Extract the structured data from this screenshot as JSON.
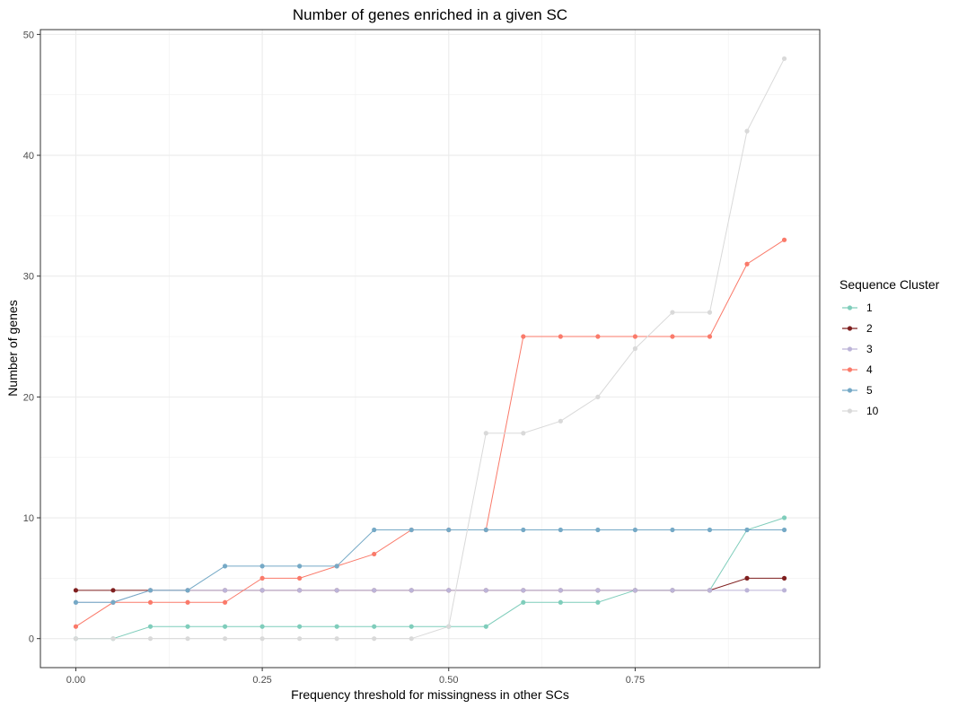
{
  "chart_data": {
    "type": "line",
    "title": "Number of genes enriched in a given SC",
    "xlabel": "Frequency threshold for missingness in other SCs",
    "ylabel": "Number of genes",
    "xlim": [
      -0.0475,
      0.9975
    ],
    "ylim": [
      -2.4,
      50.4
    ],
    "x_ticks": [
      0,
      0.25,
      0.5,
      0.75
    ],
    "x_tick_labels": [
      "0.00",
      "0.25",
      "0.50",
      "0.75"
    ],
    "y_ticks": [
      0,
      10,
      20,
      30,
      40,
      50
    ],
    "y_tick_labels": [
      "0",
      "10",
      "20",
      "30",
      "40",
      "50"
    ],
    "grid": true,
    "legend_title": "Sequence Cluster",
    "legend_position": "right",
    "x": [
      0,
      0.05,
      0.1,
      0.15,
      0.2,
      0.25,
      0.3,
      0.35,
      0.4,
      0.45,
      0.5,
      0.55,
      0.6,
      0.65,
      0.7,
      0.75,
      0.8,
      0.85,
      0.9,
      0.95
    ],
    "series": [
      {
        "name": "1",
        "color": "#7fcdbb",
        "values": [
          0,
          0,
          1,
          1,
          1,
          1,
          1,
          1,
          1,
          1,
          1,
          1,
          3,
          3,
          3,
          4,
          4,
          4,
          9,
          10
        ]
      },
      {
        "name": "2",
        "color": "#7f1f1f",
        "values": [
          4,
          4,
          4,
          4,
          4,
          4,
          4,
          4,
          4,
          4,
          4,
          4,
          4,
          4,
          4,
          4,
          4,
          4,
          5,
          5
        ]
      },
      {
        "name": "3",
        "color": "#bcb4d8",
        "values": [
          3,
          3,
          4,
          4,
          4,
          4,
          4,
          4,
          4,
          4,
          4,
          4,
          4,
          4,
          4,
          4,
          4,
          4,
          4,
          4
        ]
      },
      {
        "name": "4",
        "color": "#fa7a6a",
        "values": [
          1,
          3,
          3,
          3,
          3,
          5,
          5,
          6,
          7,
          9,
          9,
          9,
          25,
          25,
          25,
          25,
          25,
          25,
          31,
          33
        ]
      },
      {
        "name": "5",
        "color": "#75a9c6",
        "values": [
          3,
          3,
          4,
          4,
          6,
          6,
          6,
          6,
          9,
          9,
          9,
          9,
          9,
          9,
          9,
          9,
          9,
          9,
          9,
          9
        ]
      },
      {
        "name": "10",
        "color": "#d9d9d9",
        "values": [
          0,
          0,
          0,
          0,
          0,
          0,
          0,
          0,
          0,
          0,
          1,
          17,
          17,
          18,
          20,
          24,
          27,
          27,
          42,
          48
        ]
      }
    ]
  }
}
